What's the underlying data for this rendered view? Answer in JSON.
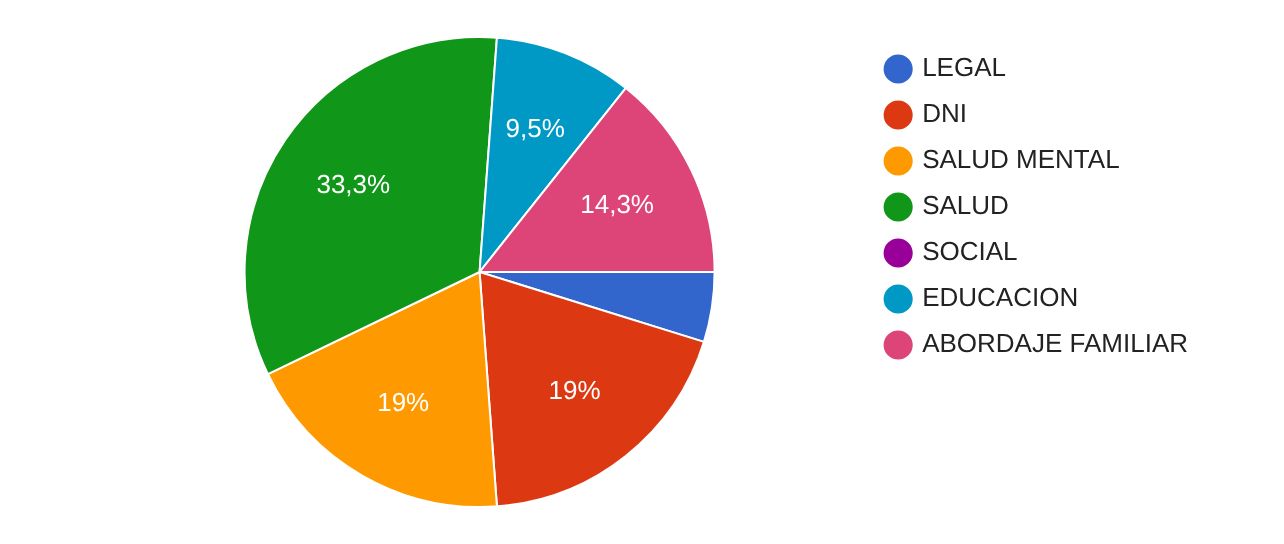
{
  "chart_data": {
    "type": "pie",
    "categories": [
      "LEGAL",
      "DNI",
      "SALUD MENTAL",
      "SALUD",
      "SOCIAL",
      "EDUCACION",
      "ABORDAJE FAMILIAR"
    ],
    "values": [
      4.8,
      19,
      19,
      33.3,
      0,
      9.5,
      14.3
    ],
    "colors": [
      "#3366cc",
      "#dc3912",
      "#ff9900",
      "#109618",
      "#990099",
      "#0099c6",
      "#dd4477"
    ],
    "value_labels": [
      null,
      "19%",
      "19%",
      "33,3%",
      null,
      "9,5%",
      "14,3%"
    ],
    "legend": "right"
  }
}
